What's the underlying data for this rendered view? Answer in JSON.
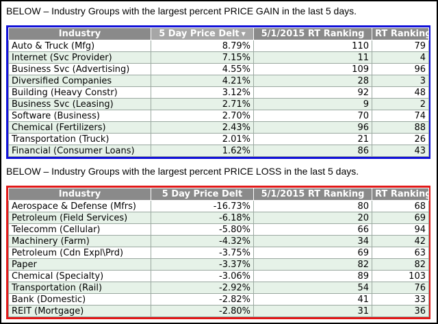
{
  "gain": {
    "heading": "BELOW – Industry Groups with the largest percent PRICE GAIN in the last 5 days.",
    "columns": [
      "Industry",
      "5 Day Price Delt",
      "5/1/2015 RT Ranking",
      "RT Ranking"
    ],
    "rows": [
      [
        "Auto & Truck (Mfg)",
        "8.79%",
        "110",
        "79"
      ],
      [
        "Internet (Svc Provider)",
        "7.15%",
        "11",
        "4"
      ],
      [
        "Business Svc (Advertising)",
        "4.55%",
        "109",
        "96"
      ],
      [
        "Diversified Companies",
        "4.21%",
        "28",
        "3"
      ],
      [
        "Building (Heavy Constr)",
        "3.12%",
        "92",
        "48"
      ],
      [
        "Business Svc (Leasing)",
        "2.71%",
        "9",
        "2"
      ],
      [
        "Software (Business)",
        "2.70%",
        "70",
        "74"
      ],
      [
        "Chemical (Fertilizers)",
        "2.43%",
        "96",
        "88"
      ],
      [
        "Transportation (Truck)",
        "2.01%",
        "21",
        "26"
      ],
      [
        "Financial (Consumer Loans)",
        "1.62%",
        "86",
        "43"
      ]
    ]
  },
  "loss": {
    "heading": "BELOW – Industry Groups with the largest percent PRICE LOSS in the last 5 days.",
    "columns": [
      "Industry",
      "5 Day Price Delt",
      "5/1/2015 RT Ranking",
      "RT Ranking"
    ],
    "rows": [
      [
        "Aerospace & Defense (Mfrs)",
        "-16.73%",
        "80",
        "68"
      ],
      [
        "Petroleum (Field Services)",
        "-6.18%",
        "20",
        "69"
      ],
      [
        "Telecomm (Cellular)",
        "-5.80%",
        "66",
        "94"
      ],
      [
        "Machinery (Farm)",
        "-4.32%",
        "34",
        "42"
      ],
      [
        "Petroleum (Cdn Expl\\Prd)",
        "-3.75%",
        "69",
        "63"
      ],
      [
        "Paper",
        "-3.37%",
        "82",
        "82"
      ],
      [
        "Chemical (Specialty)",
        "-3.06%",
        "89",
        "103"
      ],
      [
        "Transportation (Rail)",
        "-2.92%",
        "54",
        "76"
      ],
      [
        "Bank (Domestic)",
        "-2.82%",
        "41",
        "33"
      ],
      [
        "REIT (Mortgage)",
        "-2.80%",
        "31",
        "36"
      ]
    ]
  },
  "icons": {
    "sort": "sort-descending-icon"
  },
  "colors": {
    "gain_border": "#1010d8",
    "loss_border": "#e01818",
    "header_bg": "#8a8a8a",
    "alt_row_bg": "#e6f2e8"
  }
}
